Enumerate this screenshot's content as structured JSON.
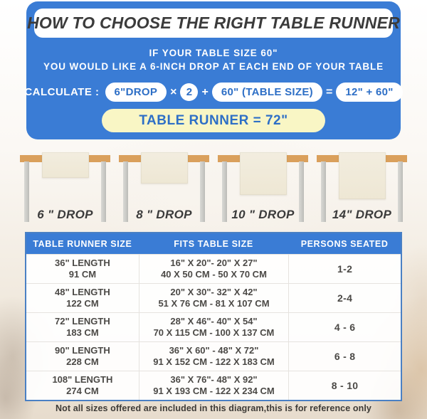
{
  "colors": {
    "accent_blue": "#3a7cd5",
    "pill_text_blue": "#2e6fc6",
    "highlight_yellow": "#f9f6c5",
    "title_dark": "#3b3b3b",
    "wood_tabletop": "#daa05c",
    "runner_cloth": "#efe9d9",
    "table_leg_gray": "#cfcfcb"
  },
  "header": {
    "title": "HOW TO CHOOSE THE RIGHT TABLE RUNNER",
    "condition_line1": "IF YOUR TABLE SIZE 60\"",
    "condition_line2": "YOU WOULD LIKE A 6-INCH DROP AT EACH END OF YOUR TABLE",
    "calc": {
      "label": "CALCULATE :",
      "drop_value": "6\"DROP",
      "times_sign": "×",
      "multiplier": "2",
      "plus_sign": "+",
      "table_size": "60\" (TABLE SIZE)",
      "equals_sign": "=",
      "result_expression": "12\" + 60\"",
      "result": "TABLE RUNNER = 72\""
    }
  },
  "drops": [
    {
      "label": "6 \" DROP"
    },
    {
      "label": "8 \" DROP"
    },
    {
      "label": "10 \" DROP"
    },
    {
      "label": "14\" DROP"
    }
  ],
  "size_table": {
    "columns": [
      "TABLE RUNNER SIZE",
      "FITS TABLE SIZE",
      "PERSONS SEATED"
    ],
    "rows": [
      {
        "runner_size_in": "36\" LENGTH",
        "runner_size_cm": "91 CM",
        "fits_in": "16\" X 20\"- 20\" X 27\"",
        "fits_cm": "40 X 50 CM - 50 X 70 CM",
        "persons": "1-2"
      },
      {
        "runner_size_in": "48\" LENGTH",
        "runner_size_cm": "122 CM",
        "fits_in": "20\" X 30\"- 32\" X 42\"",
        "fits_cm": "51 X 76 CM - 81 X 107 CM",
        "persons": "2-4"
      },
      {
        "runner_size_in": "72\" LENGTH",
        "runner_size_cm": "183 CM",
        "fits_in": "28\" X 46\"- 40\" X 54\"",
        "fits_cm": "70 X 115 CM - 100 X 137 CM",
        "persons": "4 - 6"
      },
      {
        "runner_size_in": "90\" LENGTH",
        "runner_size_cm": "228 CM",
        "fits_in": "36\" X 60\" - 48\" X 72\"",
        "fits_cm": "91 X 152 CM - 122 X 183 CM",
        "persons": "6 - 8"
      },
      {
        "runner_size_in": "108\" LENGTH",
        "runner_size_cm": "274 CM",
        "fits_in": "36\" X 76\"- 48\" X 92\"",
        "fits_cm": "91 X 193 CM - 122 X 234 CM",
        "persons": "8 - 10"
      }
    ]
  },
  "footer_note": "Not all sizes offered are included in this diagram,this is for reference only"
}
